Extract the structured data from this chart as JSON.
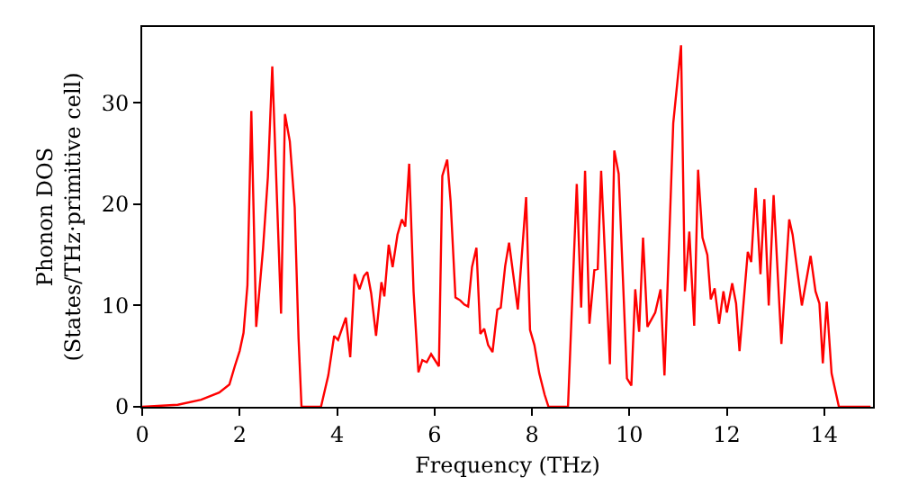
{
  "chart_data": {
    "type": "line",
    "xlabel": "Frequency (THz)",
    "ylabel": "Phonon DOS\n(States/THz·primitive cell)",
    "xlim": [
      0,
      15
    ],
    "ylim": [
      0,
      37.5
    ],
    "xticks": [
      0,
      2,
      4,
      6,
      8,
      10,
      12,
      14
    ],
    "yticks": [
      0,
      10,
      20,
      30
    ],
    "grid": false,
    "marker": "none",
    "line_style": "solid",
    "series": [
      {
        "color": "#ff0000",
        "x": [
          0,
          0.73,
          1.21,
          1.58,
          1.79,
          1.9,
          2.0,
          2.08,
          2.16,
          2.24,
          2.34,
          2.48,
          2.58,
          2.67,
          2.85,
          2.93,
          3.03,
          3.13,
          3.21,
          3.27,
          3.67,
          3.82,
          3.94,
          4.02,
          4.18,
          4.27,
          4.36,
          4.46,
          4.55,
          4.62,
          4.7,
          4.8,
          4.91,
          4.97,
          5.06,
          5.14,
          5.24,
          5.33,
          5.4,
          5.48,
          5.57,
          5.67,
          5.75,
          5.84,
          5.93,
          6.09,
          6.16,
          6.26,
          6.33,
          6.43,
          6.53,
          6.61,
          6.69,
          6.77,
          6.86,
          6.94,
          7.02,
          7.1,
          7.19,
          7.29,
          7.36,
          7.45,
          7.53,
          7.71,
          7.88,
          7.96,
          8.05,
          8.15,
          8.26,
          8.34,
          8.74,
          8.92,
          9.01,
          9.09,
          9.18,
          9.28,
          9.35,
          9.42,
          9.6,
          9.69,
          9.78,
          9.95,
          10.04,
          10.12,
          10.2,
          10.28,
          10.37,
          10.53,
          10.64,
          10.72,
          10.9,
          11.06,
          11.14,
          11.23,
          11.33,
          11.41,
          11.5,
          11.6,
          11.67,
          11.75,
          11.84,
          11.93,
          12.0,
          12.11,
          12.19,
          12.26,
          12.43,
          12.5,
          12.59,
          12.69,
          12.77,
          12.86,
          12.96,
          13.12,
          13.28,
          13.35,
          13.54,
          13.72,
          13.82,
          13.9,
          13.97,
          14.05,
          14.15,
          14.3,
          14.95
        ],
        "values": [
          0,
          0.2,
          0.7,
          1.4,
          2.2,
          4,
          5.5,
          7.3,
          12,
          29.2,
          7.9,
          15.6,
          22.7,
          33.6,
          9.2,
          28.9,
          26.2,
          19.7,
          6.7,
          0,
          0,
          3.1,
          7,
          6.6,
          8.8,
          4.9,
          13.1,
          11.6,
          12.9,
          13.3,
          11.2,
          7,
          12.3,
          10.9,
          16,
          13.8,
          17,
          18.5,
          17.8,
          24,
          11.4,
          3.4,
          4.6,
          4.4,
          5.2,
          4,
          22.8,
          24.4,
          20.3,
          10.8,
          10.5,
          10.1,
          9.9,
          13.8,
          15.7,
          7.2,
          7.7,
          6.1,
          5.4,
          9.6,
          9.8,
          13.9,
          16.2,
          9.6,
          20.7,
          7.6,
          6.1,
          3.3,
          1.2,
          0,
          0,
          22,
          9.8,
          23.3,
          8.2,
          13.5,
          13.6,
          23.3,
          4.2,
          25.3,
          23,
          2.8,
          2.1,
          11.6,
          7.4,
          16.7,
          7.9,
          9.3,
          11.6,
          3.1,
          28,
          35.7,
          11.4,
          17.3,
          8,
          23.4,
          16.7,
          15,
          10.6,
          11.7,
          8.2,
          11.4,
          9.3,
          12.2,
          10.2,
          5.5,
          15.3,
          14.3,
          21.6,
          13.1,
          20.5,
          10,
          20.9,
          6.2,
          18.5,
          17,
          10,
          14.9,
          11.4,
          10.2,
          4.3,
          10.4,
          3.3,
          0,
          0
        ]
      }
    ]
  }
}
